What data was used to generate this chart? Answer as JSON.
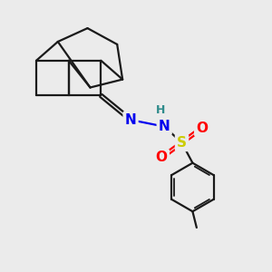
{
  "background_color": "#ebebeb",
  "bond_color": "#1a1a1a",
  "N_color": "#0000ee",
  "H_color": "#2e8b8b",
  "S_color": "#cccc00",
  "O_color": "#ff0000",
  "line_width": 1.6,
  "font_size_atom": 11,
  "font_size_H": 9,
  "figsize": [
    3.0,
    3.0
  ],
  "dpi": 100,
  "xlim": [
    0,
    10
  ],
  "ylim": [
    0,
    10
  ]
}
